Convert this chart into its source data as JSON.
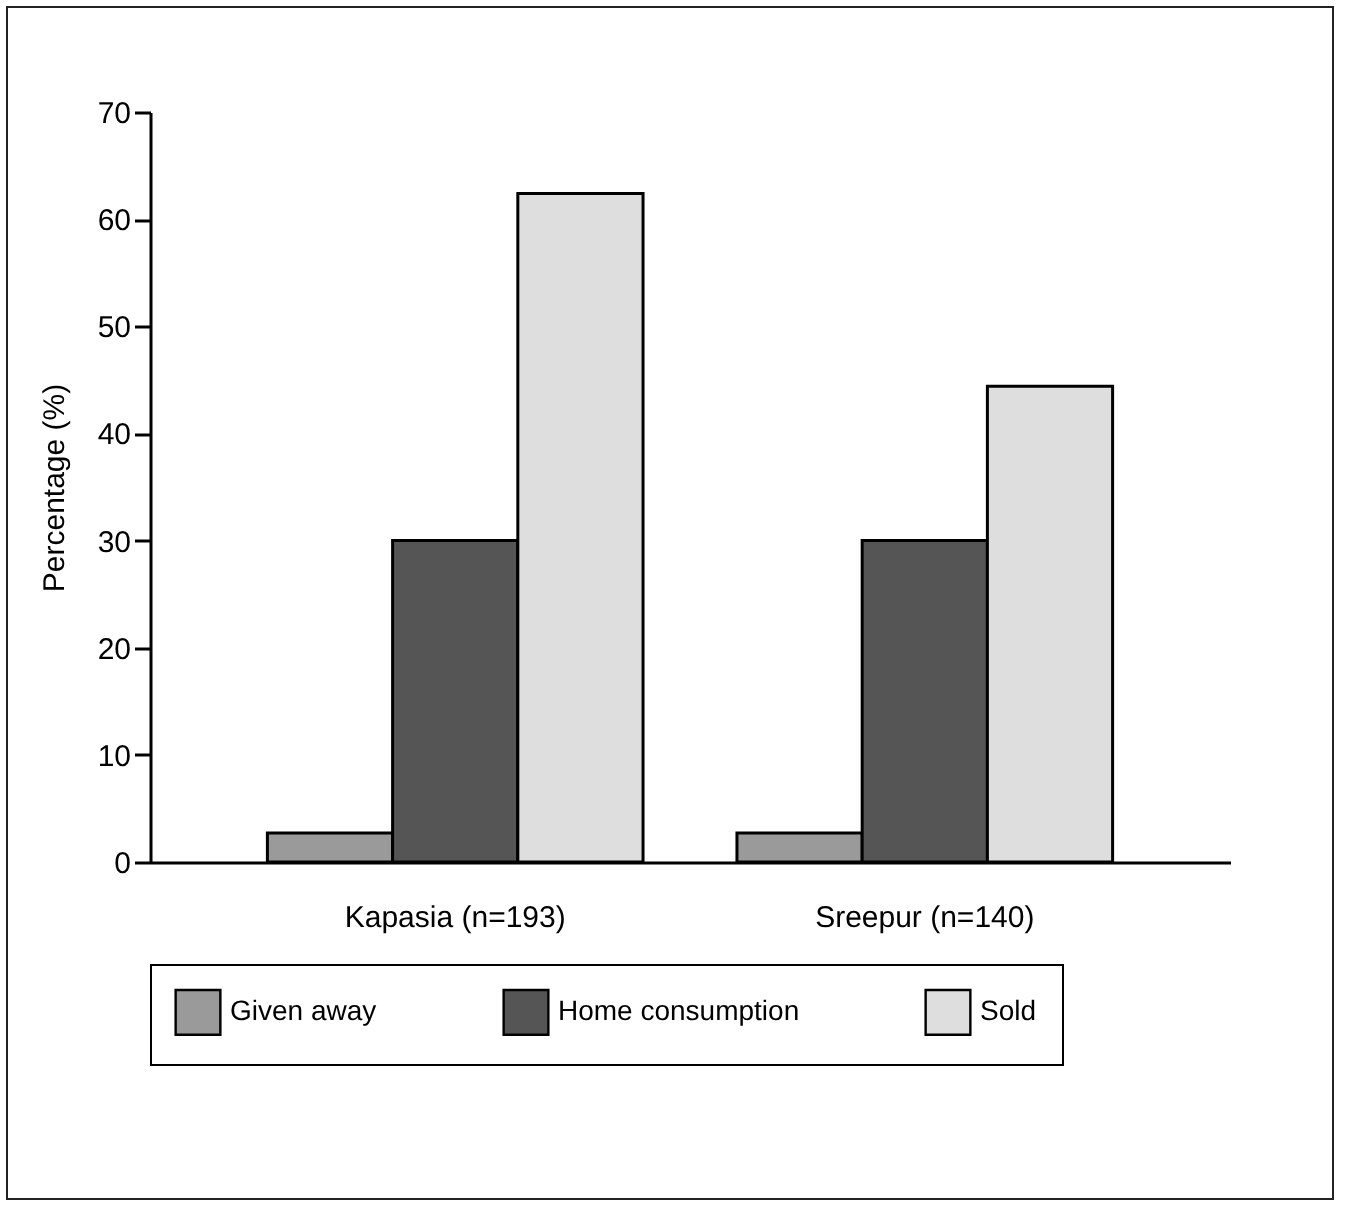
{
  "chart_data": {
    "type": "bar",
    "ylabel": "Percentage (%)",
    "categories": [
      "Kapasia (n=193)",
      "Sreepur (n=140)"
    ],
    "series": [
      {
        "name": "Given away",
        "color": "#9a9a9a",
        "values": [
          2.7,
          2.7
        ]
      },
      {
        "name": "Home consumption",
        "color": "#555555",
        "values": [
          30,
          30
        ]
      },
      {
        "name": "Sold",
        "color": "#dedede",
        "values": [
          62.4,
          44.4
        ]
      }
    ],
    "ylim": [
      0,
      70
    ],
    "yticks": [
      0,
      10,
      20,
      30,
      40,
      50,
      60,
      70
    ],
    "grid": false,
    "legend": "bottom"
  }
}
